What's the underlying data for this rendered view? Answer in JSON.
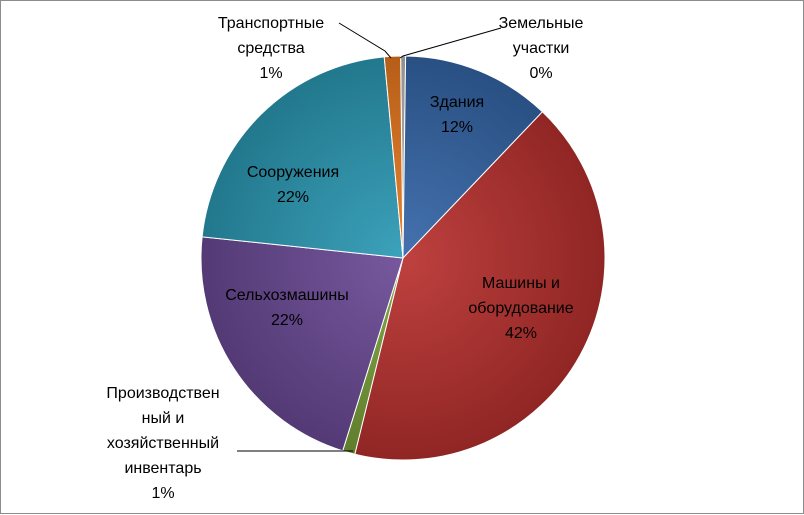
{
  "chart_data": {
    "type": "pie",
    "title": "",
    "legend": "none",
    "slices": [
      {
        "label": "Земельные участки",
        "label_lines": [
          "Земельные",
          "участки"
        ],
        "value": 0.4,
        "percent_label": "0%",
        "color": "#b8b8b8"
      },
      {
        "label": "Здания",
        "label_lines": [
          "Здания"
        ],
        "value": 12,
        "percent_label": "12%",
        "color": "#3566a8"
      },
      {
        "label": "Машины и оборудование",
        "label_lines": [
          "Машины и",
          "оборудование"
        ],
        "value": 42,
        "percent_label": "42%",
        "color": "#b8312e"
      },
      {
        "label": "Производственный и хозяйственный инвентарь",
        "label_lines": [
          "Производствен",
          "ный и",
          "хозяйственный",
          "инвентарь"
        ],
        "value": 1,
        "percent_label": "1%",
        "color": "#7aa23a"
      },
      {
        "label": "Сельхозмашины",
        "label_lines": [
          "Сельхозмашины"
        ],
        "value": 22,
        "percent_label": "22%",
        "color": "#6b4a96"
      },
      {
        "label": "Сооружения",
        "label_lines": [
          "Сооружения"
        ],
        "value": 22,
        "percent_label": "22%",
        "color": "#2b9ab5"
      },
      {
        "label": "Транспортные средства",
        "label_lines": [
          "Транспортные",
          "средства"
        ],
        "value": 1.3,
        "percent_label": "1%",
        "color": "#e8781f"
      }
    ]
  }
}
